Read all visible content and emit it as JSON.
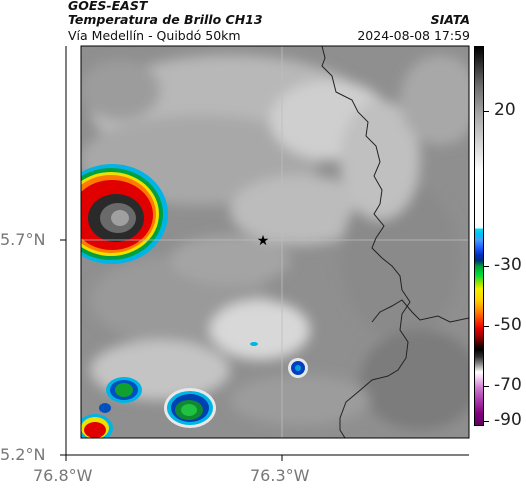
{
  "header": {
    "satellite": "GOES-EAST",
    "product": "Temperatura de Brillo CH13",
    "route": "Vía Medellín - Quibdó 50km",
    "agency": "SIATA",
    "timestamp": "2024-08-08 17:59"
  },
  "axes": {
    "lat_ticks": [
      "5.7°N",
      "5.2°N"
    ],
    "lon_ticks": [
      "76.8°W",
      "76.3°W"
    ]
  },
  "colorbar": {
    "ticks": [
      "20",
      "-30",
      "-50",
      "-70",
      "-90"
    ]
  },
  "colors": {
    "cold_core": "#1a1a1a",
    "red": "#e00000",
    "yellow": "#f7e600",
    "green": "#10c030",
    "blue": "#0040c0",
    "cyan": "#00c0f0",
    "border_line": "#222222"
  }
}
